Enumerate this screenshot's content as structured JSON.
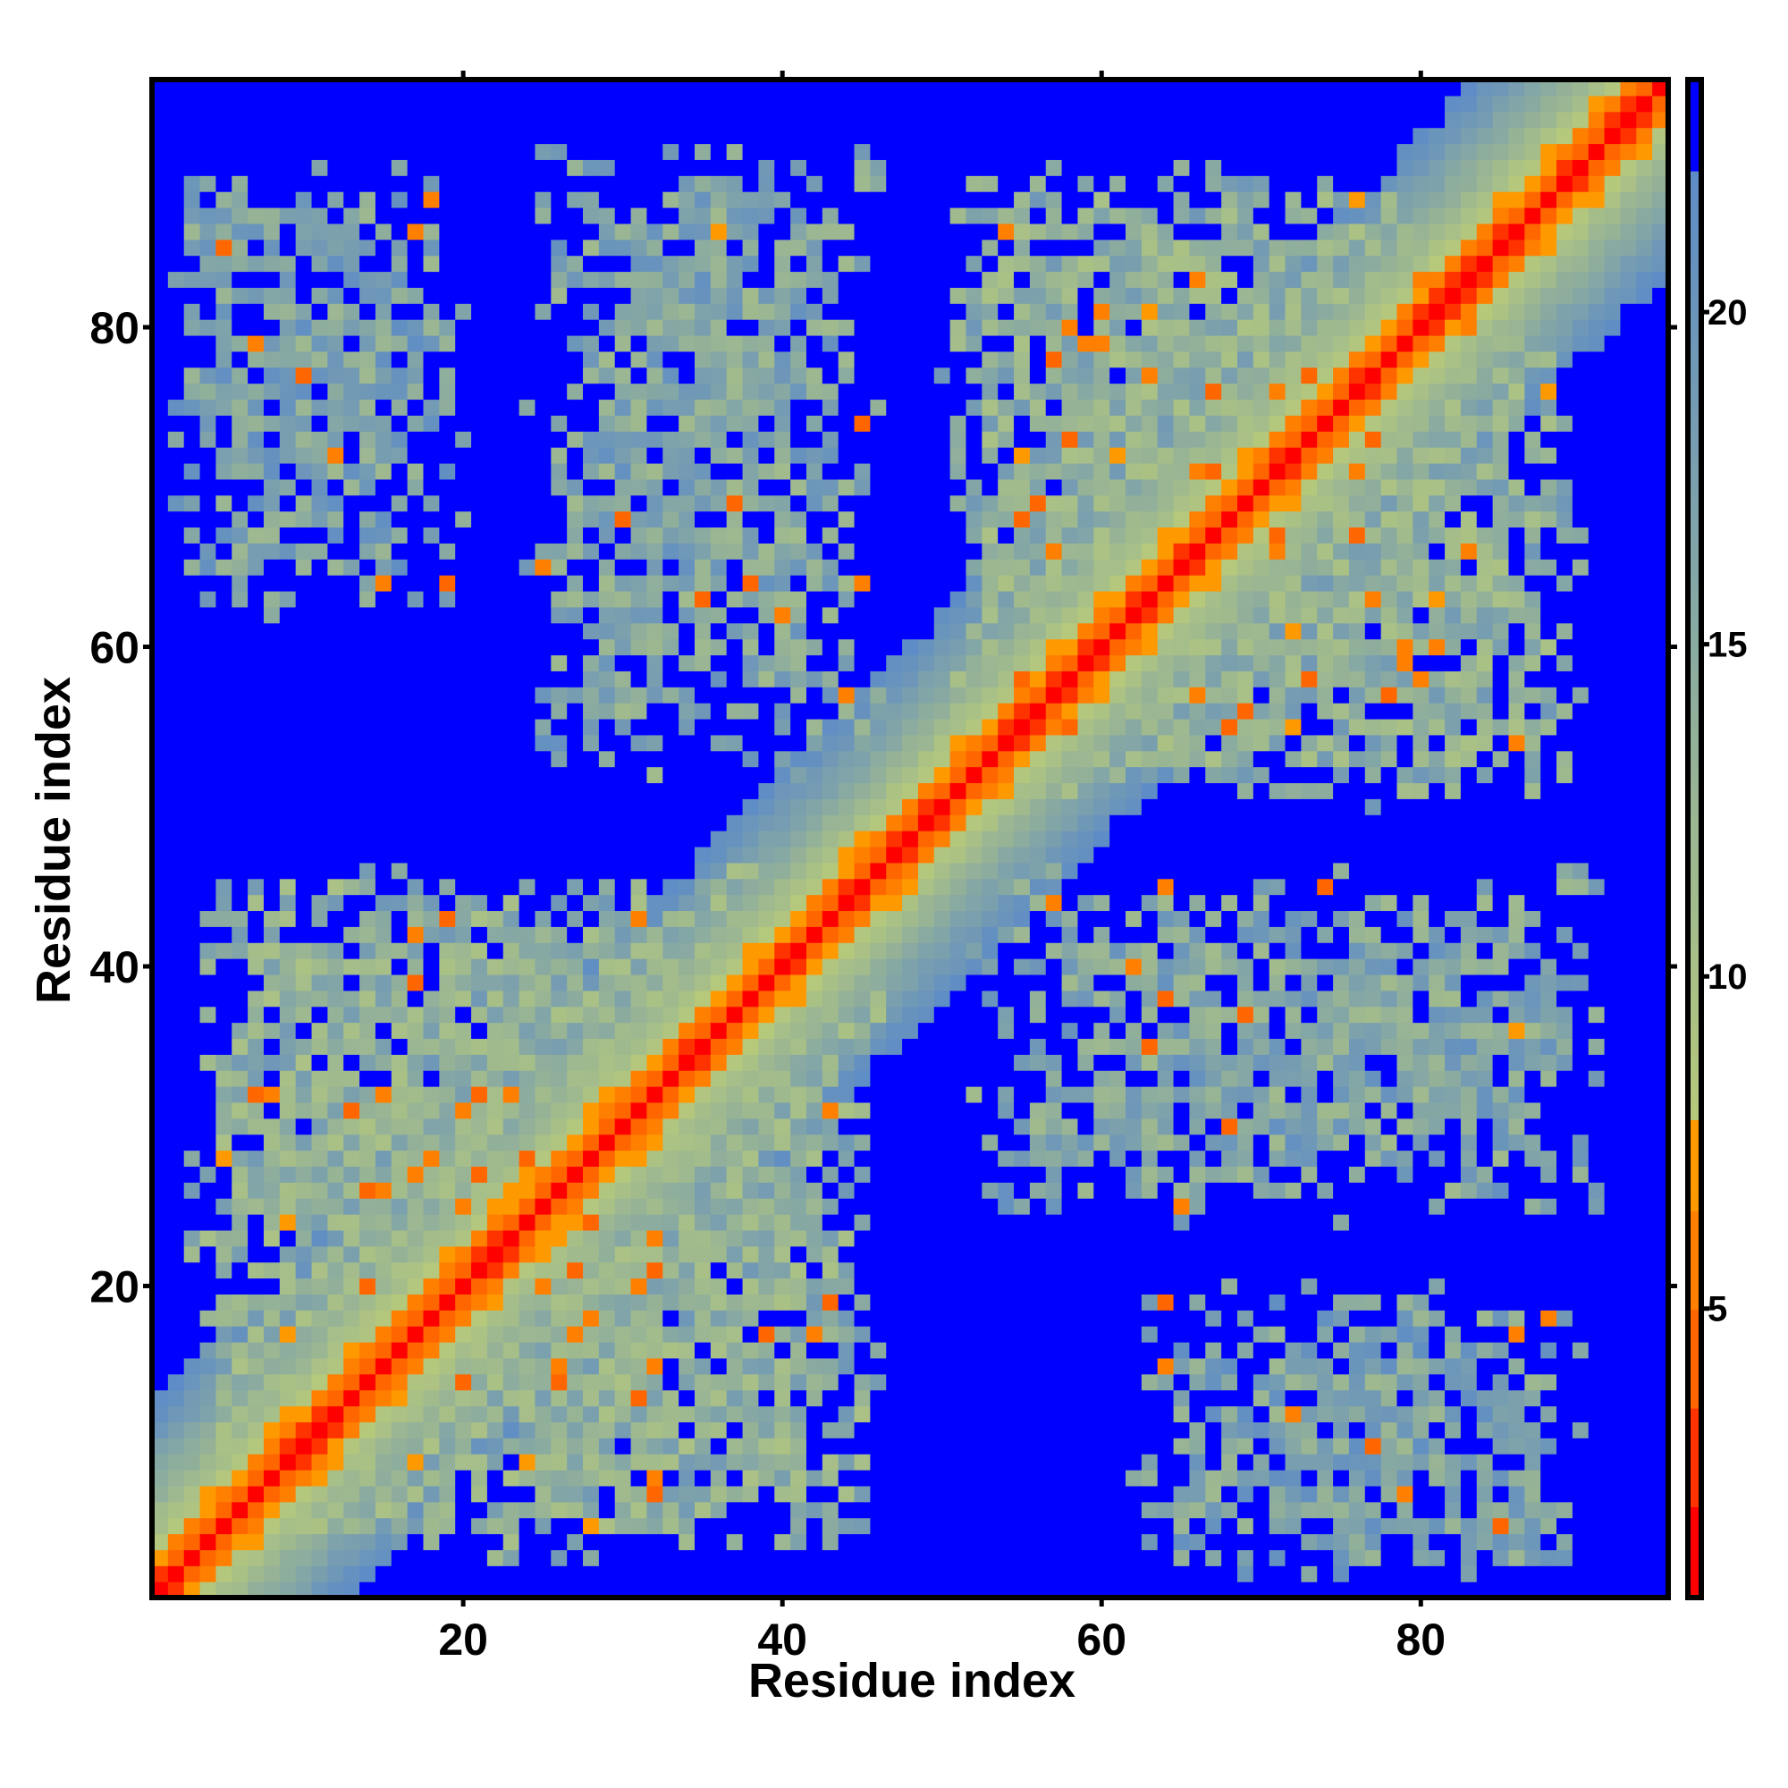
{
  "chart_data": {
    "type": "heatmap",
    "title": "",
    "xlabel": "Residue index",
    "ylabel": "Residue index",
    "n_residues": 95,
    "xlim": [
      1,
      95
    ],
    "ylim": [
      1,
      95
    ],
    "xticks": [
      20,
      40,
      60,
      80
    ],
    "yticks": [
      20,
      40,
      60,
      80
    ],
    "xtick_labels": [
      "20",
      "40",
      "60",
      "80"
    ],
    "ytick_labels": [
      "20",
      "40",
      "60",
      "80"
    ],
    "colorbar": {
      "range": [
        0.65,
        23.5
      ],
      "ticks": [
        5,
        10,
        15,
        20
      ],
      "tick_labels": [
        "5",
        "10",
        "15",
        "20"
      ],
      "bins": [
        {
          "max": 2.0,
          "color": "#ff0000"
        },
        {
          "max": 3.5,
          "color": "#ff3300"
        },
        {
          "max": 5.0,
          "color": "#ff6600"
        },
        {
          "max": 6.5,
          "color": "#ff7f00"
        },
        {
          "max": 7.8,
          "color": "#ff9900"
        },
        {
          "max": 22.1,
          "gradient": [
            "#b6c97b",
            "#5e8cc6"
          ]
        },
        {
          "max": 23.5,
          "color": "#0000ff"
        }
      ]
    },
    "matrix_model": {
      "description_of_values": "pairwise residue distance, symmetric",
      "diagonal_value": 1.0,
      "band_coefficient": 3.8,
      "band_exponent": 0.7,
      "contact_regions": [
        {
          "x": [
            1,
            20
          ],
          "y": [
            62,
            90
          ],
          "mean": 16.5,
          "spread": 5,
          "fill": 0.78
        },
        {
          "x": [
            24,
            46
          ],
          "y": [
            52,
            92
          ],
          "mean": 16,
          "spread": 5,
          "fill": 0.8
        },
        {
          "x": [
            3,
            46
          ],
          "y": [
            3,
            46
          ],
          "mean": 14.5,
          "spread": 5,
          "fill": 0.8
        },
        {
          "x": [
            50,
            90
          ],
          "y": [
            50,
            90
          ],
          "mean": 14.5,
          "spread": 5,
          "fill": 0.8
        }
      ],
      "seed": 7
    }
  }
}
